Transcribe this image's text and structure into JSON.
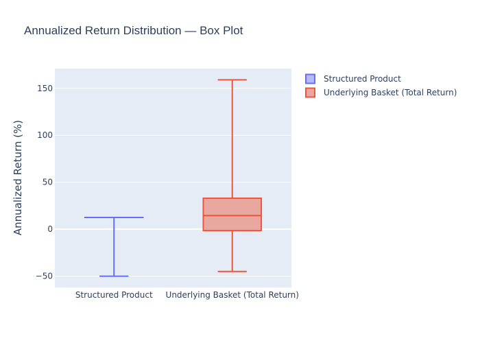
{
  "chart_data": {
    "type": "box",
    "title": "Annualized Return Distribution — Box Plot",
    "xlabel": "",
    "ylabel": "Annualized Return (%)",
    "categories": [
      "Structured Product",
      "Underlying Basket (Total Return)"
    ],
    "ylim": [
      -62,
      171
    ],
    "yticks": [
      -50,
      0,
      50,
      100,
      150
    ],
    "ytick_labels": [
      "−50",
      "0",
      "50",
      "100",
      "150"
    ],
    "grid": true,
    "legend_position": "top-right",
    "series": [
      {
        "name": "Structured Product",
        "color": "#636efa",
        "fill": "#b1b6fc",
        "min": -50,
        "q1": 12.5,
        "median": 12.5,
        "q3": 12.5,
        "max": 12.5
      },
      {
        "name": "Underlying Basket (Total Return)",
        "color": "#ef553b",
        "fill": "#e8a39a",
        "min": -45,
        "q1": -1.5,
        "median": 14.5,
        "q3": 33,
        "max": 159
      }
    ]
  }
}
